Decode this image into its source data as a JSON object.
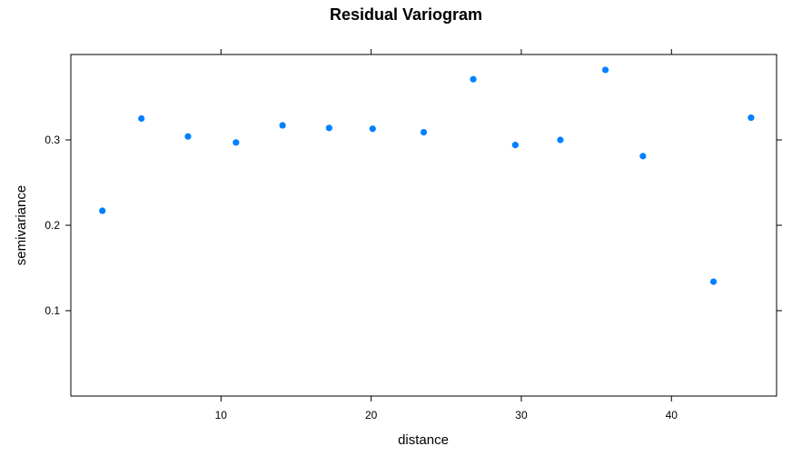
{
  "chart_data": {
    "type": "scatter",
    "title": "Residual Variogram",
    "xlabel": "distance",
    "ylabel": "semivariance",
    "xlim": [
      0,
      47
    ],
    "ylim": [
      0,
      0.4
    ],
    "xticks": [
      10,
      20,
      30,
      40
    ],
    "yticks": [
      0.1,
      0.2,
      0.3
    ],
    "grid": false,
    "legend": "none",
    "point_color": "#0080ff",
    "series": [
      {
        "x": [
          2.1,
          4.7,
          7.8,
          11.0,
          14.1,
          17.2,
          20.1,
          23.5,
          26.8,
          29.6,
          32.6,
          35.6,
          38.1,
          42.8,
          45.3
        ],
        "y": [
          0.217,
          0.325,
          0.304,
          0.297,
          0.317,
          0.314,
          0.313,
          0.309,
          0.371,
          0.294,
          0.3,
          0.382,
          0.281,
          0.134,
          0.326
        ]
      }
    ]
  }
}
